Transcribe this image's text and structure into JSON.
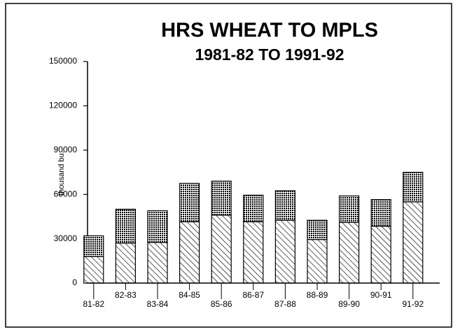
{
  "chart_data": {
    "type": "stacked_bar",
    "title": "HRS WHEAT TO MPLS",
    "subtitle": "1981-82 TO 1991-92",
    "ylabel": "thousand bu.",
    "categories": [
      "81-82",
      "82-83",
      "83-84",
      "84-85",
      "85-86",
      "86-87",
      "87-88",
      "88-89",
      "89-90",
      "90-91",
      "91-92"
    ],
    "series": [
      {
        "color": "#000000",
        "pattern": "hatch",
        "values": [
          18000,
          27000,
          27500,
          41500,
          46000,
          41500,
          42500,
          29500,
          41000,
          38500,
          55000
        ]
      },
      {
        "color": "#000000",
        "pattern": "dots",
        "values": [
          14000,
          23000,
          21500,
          26000,
          23000,
          18000,
          20000,
          13000,
          18000,
          18000,
          20000
        ]
      }
    ],
    "ylim": [
      0,
      150000
    ],
    "yticks": [
      0,
      30000,
      60000,
      90000,
      120000,
      150000
    ],
    "grid": false
  }
}
